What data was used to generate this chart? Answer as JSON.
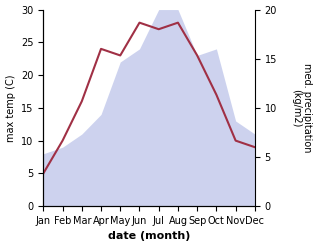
{
  "months": [
    "Jan",
    "Feb",
    "Mar",
    "Apr",
    "May",
    "Jun",
    "Jul",
    "Aug",
    "Sep",
    "Oct",
    "Nov",
    "Dec"
  ],
  "x": [
    0,
    1,
    2,
    3,
    4,
    5,
    6,
    7,
    8,
    9,
    10,
    11
  ],
  "temperature": [
    5,
    10,
    16,
    24,
    23,
    28,
    27,
    28,
    23,
    17,
    10,
    9
  ],
  "precipitation": [
    8,
    9,
    11,
    14,
    22,
    24,
    30,
    30,
    23,
    24,
    13,
    11
  ],
  "temp_color": "#a03045",
  "precip_color": "#b8c0e8",
  "bg_color": "#ffffff",
  "temp_ylim": [
    0,
    30
  ],
  "precip_ylim": [
    0,
    20
  ],
  "temp_yticks": [
    0,
    5,
    10,
    15,
    20,
    25,
    30
  ],
  "precip_yticks": [
    0,
    5,
    10,
    15,
    20
  ],
  "xlabel": "date (month)",
  "ylabel_left": "max temp (C)",
  "ylabel_right": "med. precipitation\n(kg/m2)",
  "fontsize": 7
}
